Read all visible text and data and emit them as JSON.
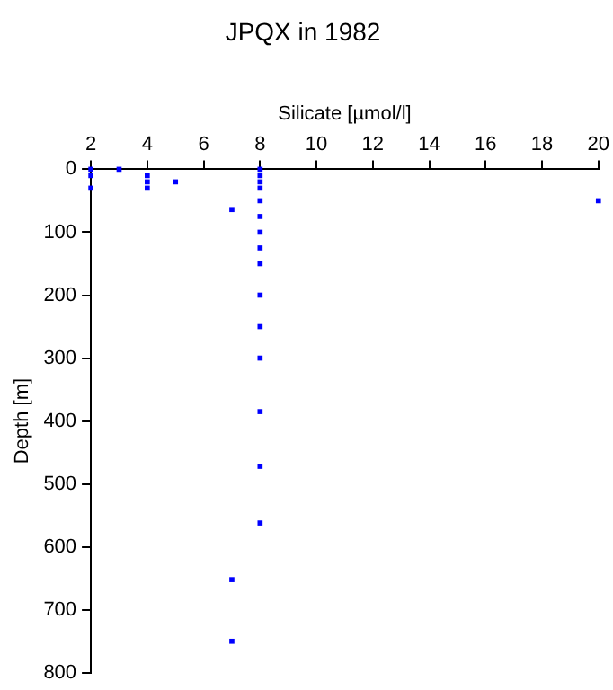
{
  "chart_data": {
    "type": "scatter",
    "title": "JPQX in 1982",
    "xlabel": "Silicate [µmol/l]",
    "ylabel": "Depth [m]",
    "x": [
      2,
      2,
      2,
      3,
      4,
      4,
      4,
      5,
      7,
      8,
      8,
      8,
      8,
      8,
      8,
      8,
      8,
      8,
      8,
      8,
      8,
      8,
      8,
      8,
      7,
      7,
      20
    ],
    "series": [
      {
        "color": "#0000ff",
        "values": [
          0,
          10,
          30,
          0,
          10,
          20,
          30,
          20,
          64,
          0,
          10,
          20,
          30,
          50,
          75,
          100,
          125,
          150,
          200,
          250,
          300,
          385,
          472,
          562,
          652,
          750,
          50
        ]
      }
    ],
    "xlim": [
      2,
      20
    ],
    "xticks": [
      2,
      4,
      6,
      8,
      10,
      12,
      14,
      16,
      18,
      20
    ],
    "ylim": [
      800,
      0
    ],
    "yticks": [
      0,
      100,
      200,
      300,
      400,
      500,
      600,
      700,
      800
    ],
    "grid": false,
    "legend": false,
    "marker": "square"
  }
}
